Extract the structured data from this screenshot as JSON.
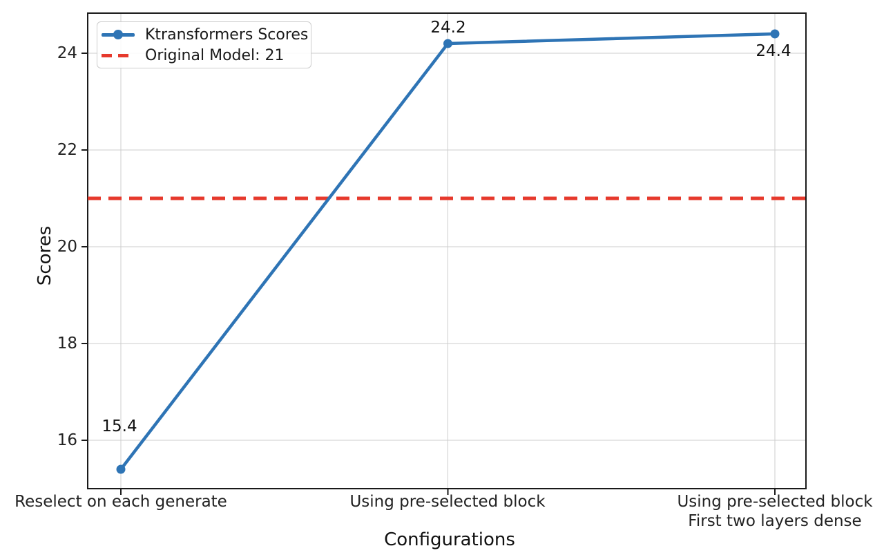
{
  "chart_data": {
    "type": "line",
    "title": "",
    "xlabel": "Configurations",
    "ylabel": "Scores",
    "categories": [
      "Reselect on each generate",
      "Using pre-selected block",
      "Using pre-selected block\nFirst two layers dense"
    ],
    "xtick_lines": [
      [
        "Reselect on each generate"
      ],
      [
        "Using pre-selected block"
      ],
      [
        "Using pre-selected block",
        "First two layers dense"
      ]
    ],
    "series": [
      {
        "name": "Ktransformers Scores",
        "values": [
          15.4,
          24.2,
          24.4
        ],
        "color": "#2e74b5",
        "marker": "circle",
        "line_style": "solid"
      }
    ],
    "point_labels": [
      "15.4",
      "24.2",
      "24.4"
    ],
    "reference_line": {
      "label": "Original Model: 21",
      "value": 21,
      "color": "#e6392c",
      "style": "dashed"
    },
    "yticks": [
      16,
      18,
      20,
      22,
      24
    ],
    "ylim": [
      15.0,
      24.85
    ],
    "grid": true,
    "grid_color": "#cccccc",
    "spine_color": "#1a1a1a",
    "legend_position": "upper left"
  }
}
